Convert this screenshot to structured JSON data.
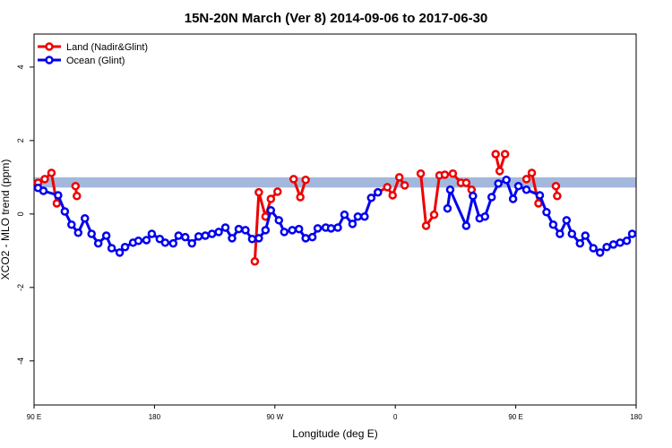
{
  "chart_data": {
    "type": "line",
    "title": "15N-20N March (Ver 8)   2014-09-06 to 2017-06-30",
    "x_label": "Longitude (deg E)",
    "y_label": "XCO2 - MLO trend (ppm)",
    "xlim": [
      90,
      540
    ],
    "ylim": [
      -5.2,
      4.9
    ],
    "xticks": [
      {
        "value": 90,
        "label": "90 E"
      },
      180,
      {
        "value": 270,
        "label": "90 W"
      },
      {
        "value": 360,
        "label": "0"
      },
      {
        "value": 450,
        "label": "90 E"
      },
      {
        "value": 540,
        "label": "180"
      }
    ],
    "yticks": [
      -4,
      -2,
      0,
      2,
      4
    ],
    "legend": "top-left",
    "band": {
      "range": [
        0.72,
        1.0
      ],
      "color": "#a3b8dc"
    },
    "series": [
      {
        "name": "Land (Nadir&Glint)",
        "color": "#ee0000",
        "x": [
          93,
          98,
          103,
          107,
          null,
          121,
          122,
          null,
          255,
          258,
          263,
          267,
          272,
          null,
          284,
          289,
          293,
          null,
          342,
          347,
          354,
          358,
          363,
          367,
          null,
          379,
          383,
          389,
          393,
          397,
          403,
          409,
          413,
          417,
          null,
          435,
          438,
          442,
          null,
          458,
          462,
          467,
          null,
          480,
          481
        ],
        "values": [
          0.85,
          0.95,
          1.12,
          0.29,
          null,
          0.76,
          0.49,
          null,
          -1.29,
          0.59,
          -0.07,
          0.41,
          0.61,
          null,
          0.95,
          0.46,
          0.93,
          null,
          0.44,
          0.59,
          0.73,
          0.51,
          1.0,
          0.78,
          null,
          1.1,
          -0.32,
          -0.02,
          1.05,
          1.07,
          1.1,
          0.85,
          0.85,
          0.66,
          null,
          1.63,
          1.17,
          1.63,
          null,
          0.95,
          1.12,
          0.29,
          null,
          0.76,
          0.49
        ]
      },
      {
        "name": "Ocean (Glint)",
        "color": "#0000ee",
        "x": [
          93,
          97,
          108,
          113,
          118,
          123,
          128,
          133,
          138,
          144,
          148,
          154,
          158,
          164,
          168,
          174,
          178,
          184,
          188,
          194,
          198,
          203,
          208,
          213,
          218,
          223,
          228,
          233,
          238,
          243,
          248,
          253,
          258,
          263,
          267,
          273,
          277,
          283,
          288,
          293,
          298,
          302,
          308,
          312,
          317,
          322,
          328,
          332,
          337,
          342,
          347,
          null,
          399,
          401,
          413,
          418,
          423,
          427,
          432,
          437,
          443,
          448,
          452,
          458,
          468,
          473,
          478,
          483,
          488,
          492,
          498,
          502,
          508,
          513,
          518,
          523,
          528,
          533,
          537
        ],
        "values": [
          0.71,
          0.63,
          0.51,
          0.07,
          -0.29,
          -0.51,
          -0.12,
          -0.54,
          -0.8,
          -0.59,
          -0.93,
          -1.05,
          -0.9,
          -0.78,
          -0.73,
          -0.71,
          -0.54,
          -0.68,
          -0.78,
          -0.8,
          -0.59,
          -0.63,
          -0.8,
          -0.61,
          -0.59,
          -0.54,
          -0.49,
          -0.37,
          -0.66,
          -0.41,
          -0.44,
          -0.68,
          -0.66,
          -0.44,
          0.1,
          -0.17,
          -0.49,
          -0.44,
          -0.41,
          -0.66,
          -0.63,
          -0.39,
          -0.37,
          -0.39,
          -0.37,
          -0.02,
          -0.27,
          -0.07,
          -0.07,
          0.44,
          0.59,
          null,
          0.15,
          0.66,
          -0.32,
          0.49,
          -0.12,
          -0.07,
          0.46,
          0.83,
          0.93,
          0.41,
          0.76,
          0.66,
          0.51,
          0.05,
          -0.29,
          -0.54,
          -0.17,
          -0.54,
          -0.8,
          -0.59,
          -0.93,
          -1.05,
          -0.9,
          -0.83,
          -0.78,
          -0.73,
          -0.54
        ]
      }
    ]
  }
}
